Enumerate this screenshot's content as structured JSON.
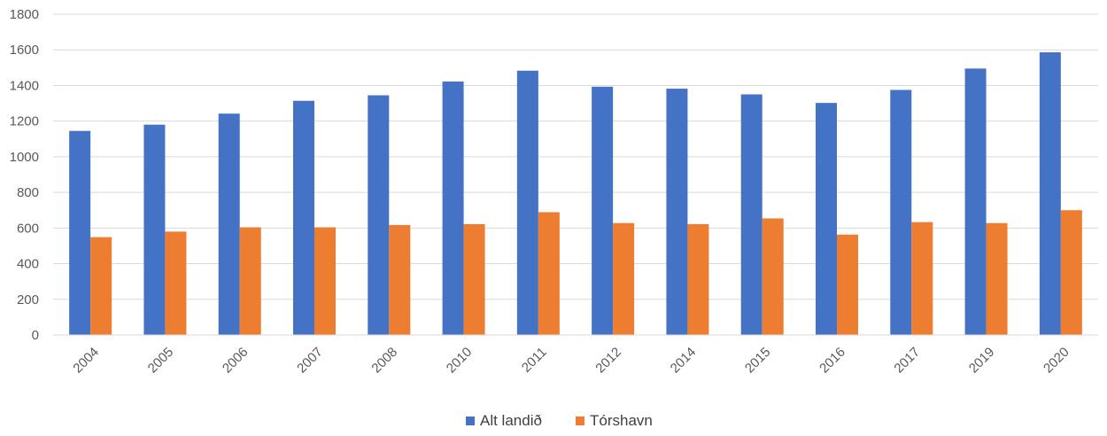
{
  "chart_data": {
    "type": "bar",
    "categories": [
      "2004",
      "2005",
      "2006",
      "2007",
      "2008",
      "2010",
      "2011",
      "2012",
      "2014",
      "2015",
      "2016",
      "2017",
      "2019",
      "2020"
    ],
    "series": [
      {
        "name": "Alt landið",
        "color": "#4472C4",
        "values": [
          1145,
          1180,
          1242,
          1314,
          1345,
          1422,
          1483,
          1393,
          1382,
          1350,
          1302,
          1375,
          1495,
          1586
        ]
      },
      {
        "name": "Tórshavn",
        "color": "#ED7D31",
        "values": [
          549,
          580,
          604,
          604,
          617,
          622,
          689,
          628,
          622,
          654,
          563,
          633,
          628,
          700
        ]
      }
    ],
    "ylim": [
      0,
      1800
    ],
    "yticks": [
      "0",
      "200",
      "400",
      "600",
      "800",
      "1000",
      "1200",
      "1400",
      "1600",
      "1800"
    ],
    "grid": true,
    "legend_position": "bottom",
    "title": "",
    "xlabel": "",
    "ylabel": ""
  }
}
